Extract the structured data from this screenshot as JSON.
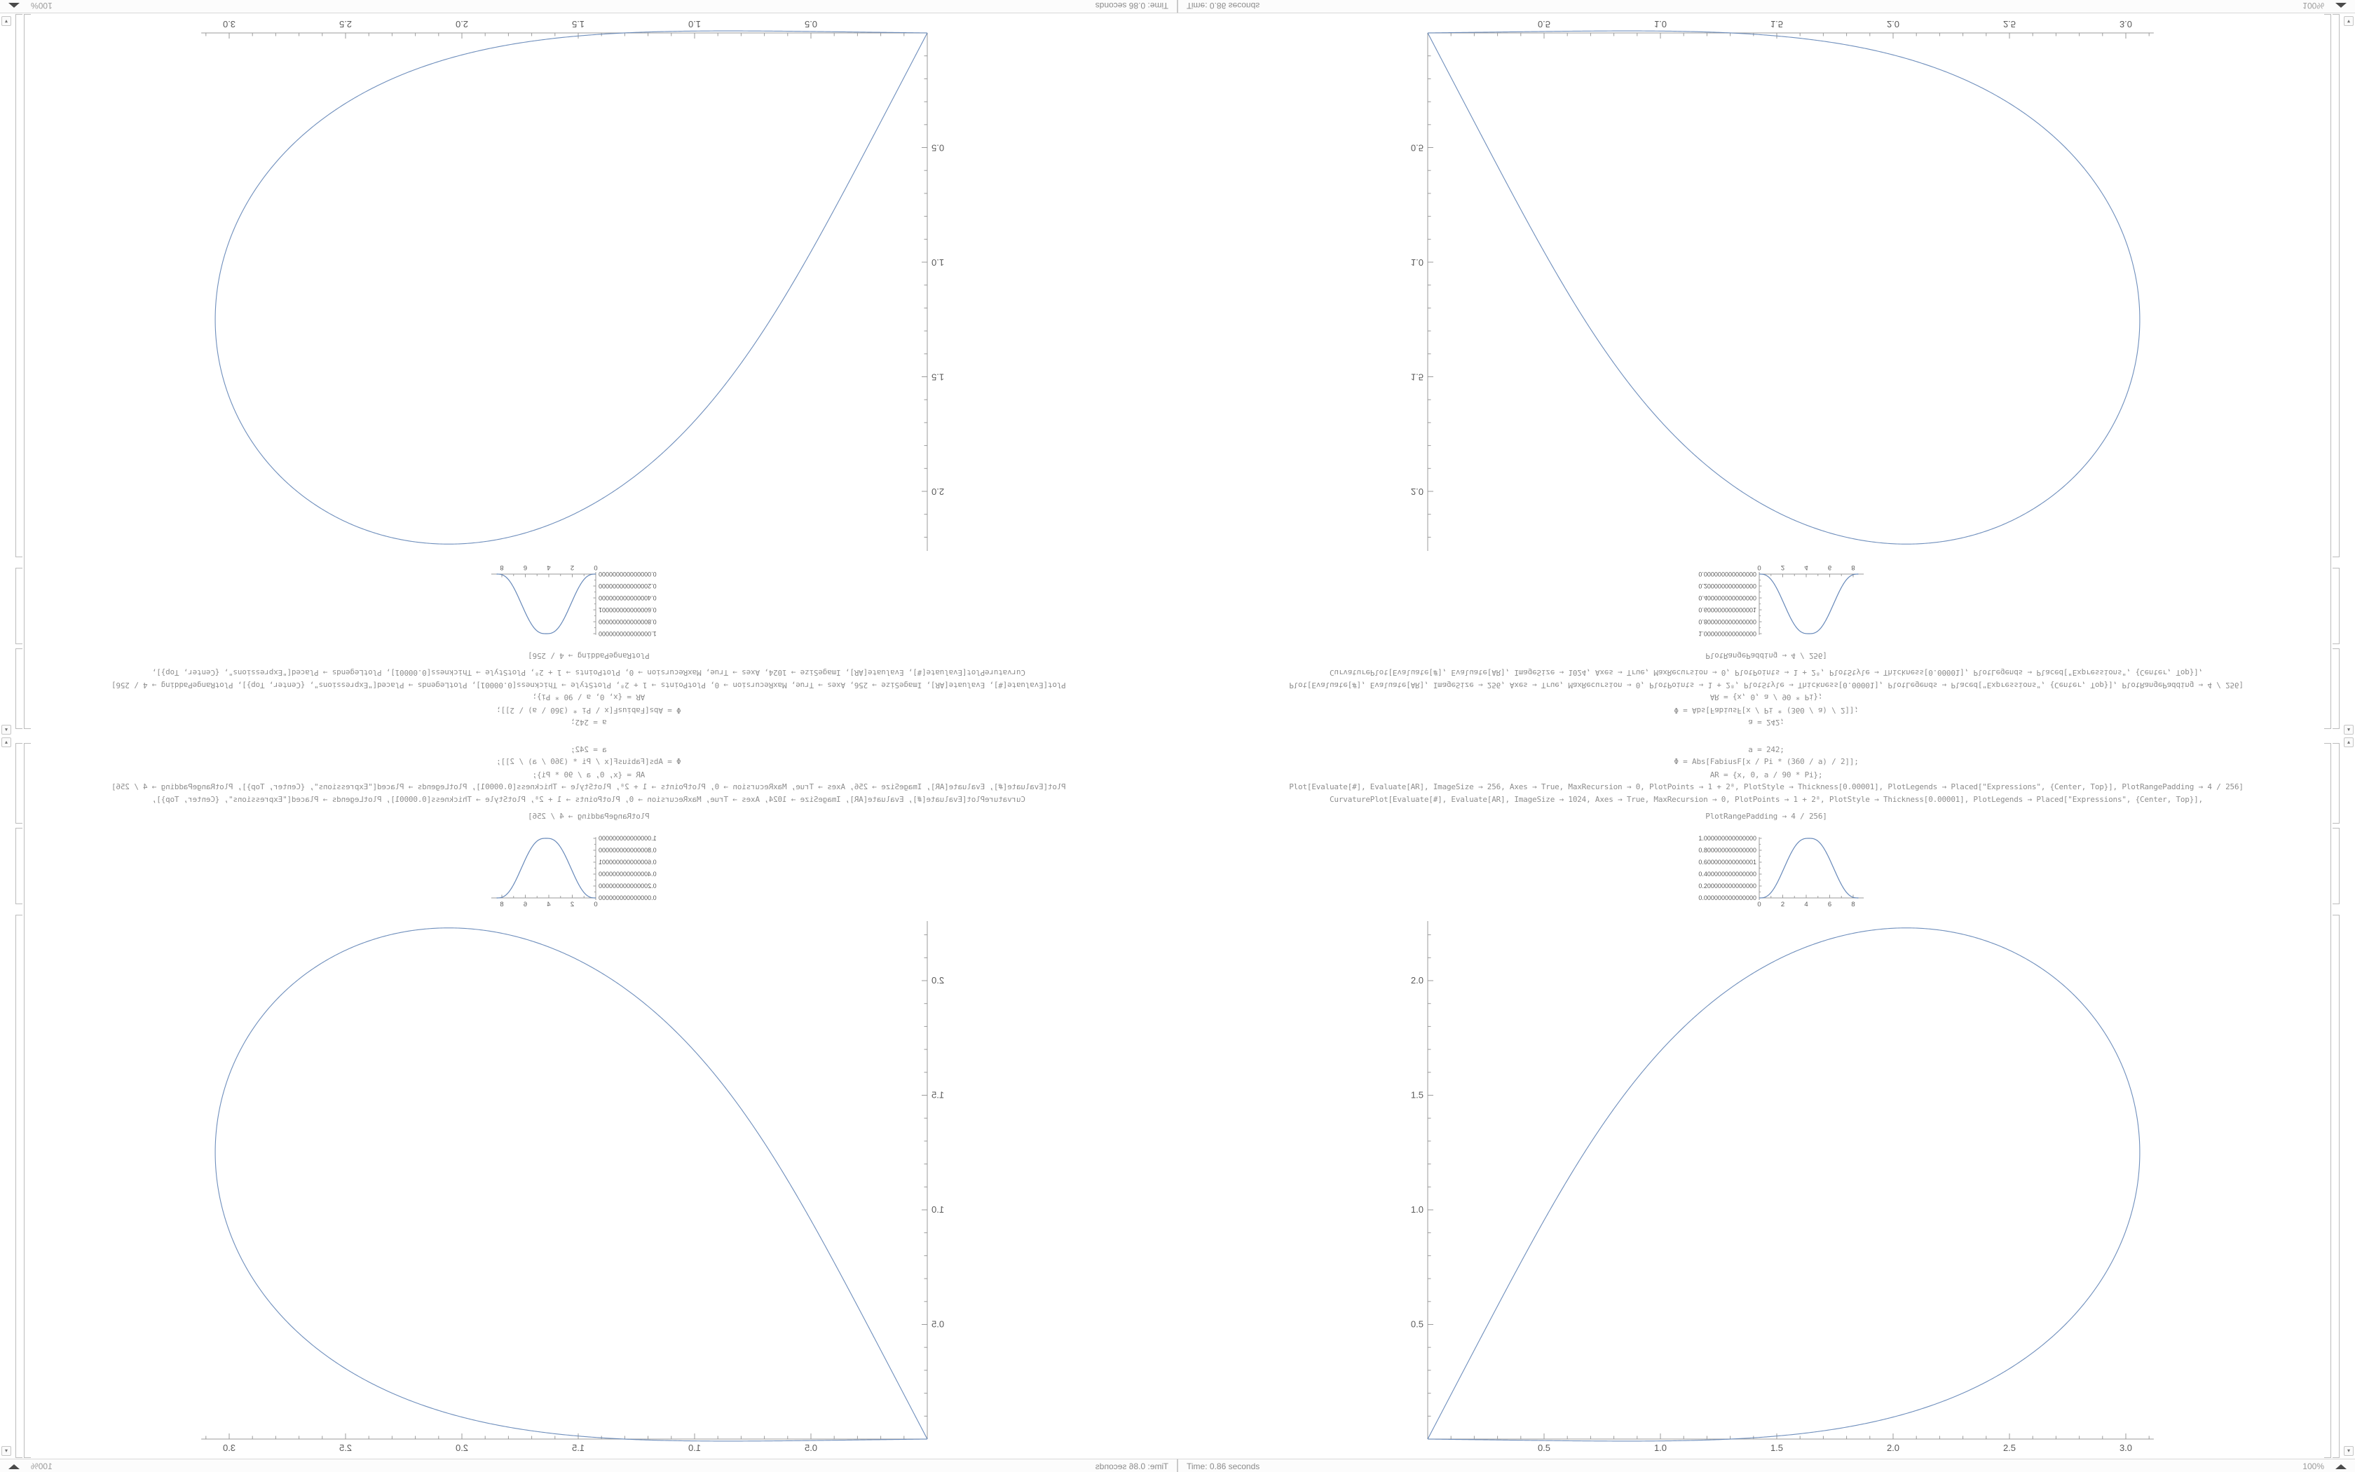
{
  "window": {
    "status_bar": {
      "time_text": "Time: 0.86 seconds",
      "zoom_text": "100%"
    },
    "scrollbar": {
      "up_glyph": "▴",
      "down_glyph": "▾"
    }
  },
  "code": {
    "lines": [
      "a = 242;",
      "Φ = Abs[FabiusF[x / Pi * (360 / a) / 2]];",
      "AR = {x, 0, a / 90 * Pi};",
      "Plot[Evaluate[#], Evaluate[AR], ImageSize → 256, Axes → True, MaxRecursion → 0, PlotPoints → 1 + 2⁸, PlotStyle → Thickness[0.00001], PlotLegends → Placed[\"Expressions\", {Center, Top}], PlotRangePadding → 4 / 256]",
      "CurvaturePlot[Evaluate[#], Evaluate[AR], ImageSize → 1024, Axes → True, MaxRecursion → 0, PlotPoints → 1 + 2⁸, PlotStyle → Thickness[0.00001], PlotLegends → Placed[\"Expressions\", {Center, Top}],",
      "PlotRangePadding → 4 / 256]"
    ]
  },
  "colors": {
    "curve": "#5e82b5",
    "axis": "#9b9b9b",
    "tick_label": "#5a5a5a",
    "code_text": "#8d8d8d",
    "bracket": "#bcbcbc",
    "status_text": "#8a8a8a"
  },
  "layout_note": "one notebook quadrant mirrored 4 ways (bottom-right upright, left scaleX(-1), top scaleY(-1))",
  "chart_data": [
    {
      "type": "line",
      "name": "fabius-bump-plot",
      "expression": "Abs[FabiusF[x / Pi * (360 / a) / 2]], a = 242",
      "domain": [
        0,
        8.4474
      ],
      "peak_value": 1.0,
      "x": {
        "ticks": [
          0,
          2,
          4,
          6,
          8
        ],
        "labels": [
          "0",
          "2",
          "4",
          "6",
          "8"
        ],
        "minor_step": 1,
        "lim": [
          0,
          8.9
        ]
      },
      "y": {
        "ticks": [
          0,
          0.2,
          0.4,
          0.6,
          0.8,
          1.0
        ],
        "labels": [
          "0.000000000000000",
          "0.200000000000000",
          "0.400000000000000",
          "0.600000000000001",
          "0.800000000000000",
          "1.000000000000000"
        ],
        "minor_step": 0.1,
        "lim": [
          0,
          1.02
        ]
      },
      "legend_position": "Center,Top",
      "grid": false
    },
    {
      "type": "line",
      "name": "curvature-teardrop-plot",
      "expression": "curve with curvature(s) = Abs[FabiusF[s / Pi * (360 / 242) / 2]]",
      "arc_length": 8.4474,
      "total_turn_deg": 242,
      "start": [
        0,
        0
      ],
      "end": [
        0,
        0
      ],
      "apex": [
        2.03,
        2.23
      ],
      "max_x": 3.06,
      "flat_segment_on_x_axis": [
        0,
        1.0
      ],
      "x": {
        "ticks": [
          0.5,
          1.0,
          1.5,
          2.0,
          2.5,
          3.0
        ],
        "labels": [
          "0.5",
          "1.0",
          "1.5",
          "2.0",
          "2.5",
          "3.0"
        ],
        "minor_step": 0.1,
        "lim": [
          0,
          3.12
        ]
      },
      "y": {
        "ticks": [
          0.5,
          1.0,
          1.5,
          2.0
        ],
        "labels": [
          "0.5",
          "1.0",
          "1.5",
          "2.0"
        ],
        "minor_step": 0.1,
        "lim": [
          0,
          2.26
        ]
      },
      "grid": false
    }
  ]
}
